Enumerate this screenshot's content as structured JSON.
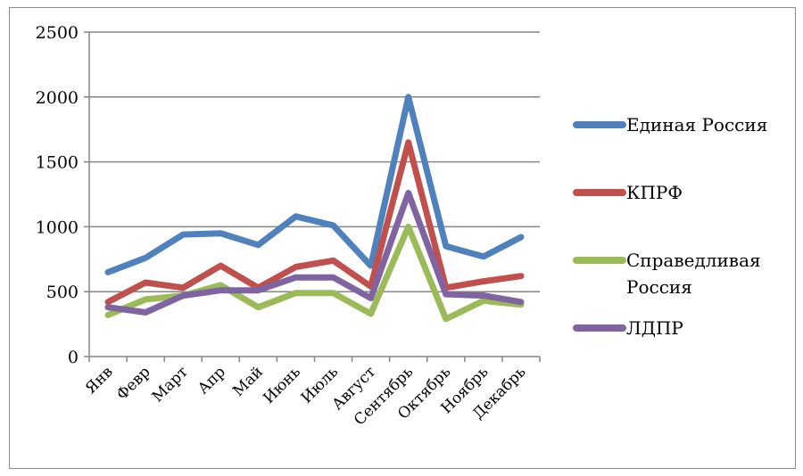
{
  "chart_data": {
    "type": "line",
    "title": "",
    "xlabel": "",
    "ylabel": "",
    "ylim": [
      0,
      2500
    ],
    "yticks": [
      0,
      500,
      1000,
      1500,
      2000,
      2500
    ],
    "grid": "horizontal",
    "legend_position": "right",
    "categories": [
      "Янв",
      "Февр",
      "Март",
      "Апр",
      "Май",
      "Июнь",
      "Июль",
      "Август",
      "Сентябрь",
      "Октябрь",
      "Ноябрь",
      "Декабрь"
    ],
    "series": [
      {
        "name": "Единая Россия",
        "color": "#4f81bd",
        "values": [
          650,
          760,
          940,
          950,
          860,
          1080,
          1010,
          700,
          2000,
          850,
          770,
          920
        ]
      },
      {
        "name": "КПРФ",
        "color": "#c0504d",
        "values": [
          420,
          570,
          530,
          700,
          530,
          690,
          740,
          540,
          1650,
          530,
          580,
          620
        ]
      },
      {
        "name": "Справедливая Россия",
        "color": "#9bbb59",
        "values": [
          320,
          440,
          470,
          550,
          380,
          490,
          490,
          330,
          1000,
          290,
          430,
          400
        ]
      },
      {
        "name": "ЛДПР",
        "color": "#8064a2",
        "values": [
          380,
          340,
          470,
          510,
          510,
          610,
          610,
          450,
          1260,
          480,
          470,
          420
        ]
      }
    ]
  }
}
